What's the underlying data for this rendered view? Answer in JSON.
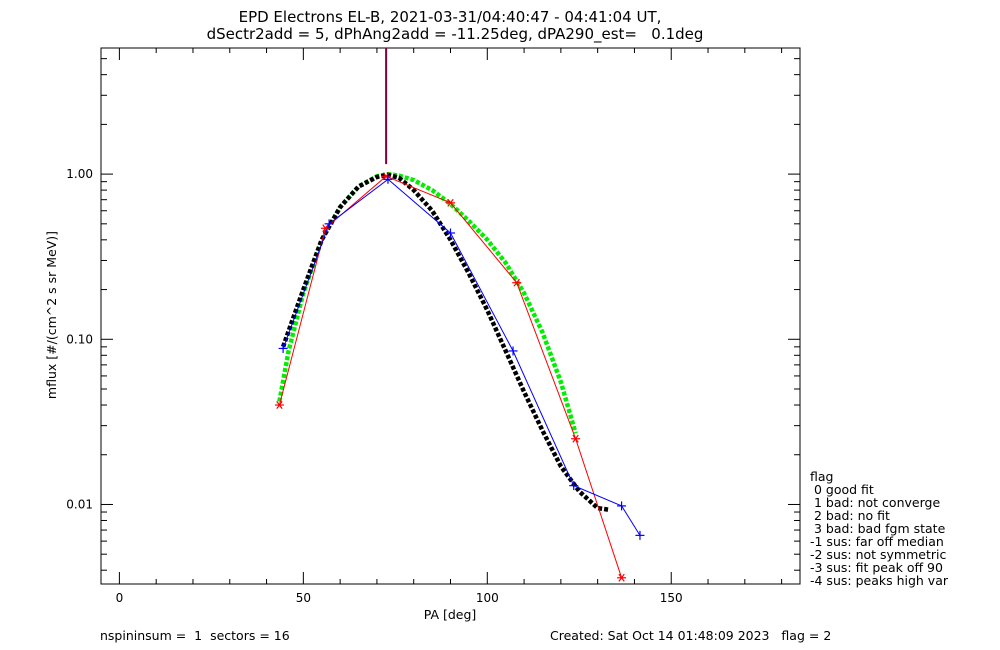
{
  "chart_data": {
    "type": "line",
    "title": "EPD Electrons EL-B, 2021-03-31/04:40:47 - 04:41:04 UT,",
    "subtitle": "dSectr2add = 5, dPhAng2add = -11.25deg, dPA290_est=   0.1deg",
    "xlabel": "PA [deg]",
    "ylabel": "mflux [#/(cm^2 s sr MeV)]",
    "xlim": [
      -5,
      185
    ],
    "ylim": [
      0.0033,
      5.8
    ],
    "yscale": "log",
    "x_ticks": [
      0,
      50,
      100,
      150
    ],
    "x_tick_labels": [
      "0",
      "50",
      "100",
      "150"
    ],
    "y_ticks": [
      0.01,
      0.1,
      1.0
    ],
    "y_tick_labels": [
      "0.01",
      "0.10",
      "1.00"
    ],
    "grid": false,
    "vertical_marker": {
      "x": 72.5,
      "y_from": 1.15,
      "color": "#800040"
    },
    "series": [
      {
        "color": "#ff0000",
        "marker": "asterisk",
        "x": [
          43.5,
          56.0,
          72.5,
          90.0,
          108.0,
          124.0,
          136.5
        ],
        "y": [
          0.04,
          0.47,
          0.97,
          0.67,
          0.22,
          0.025,
          0.0036
        ]
      },
      {
        "color": "#0000ff",
        "marker": "plus",
        "x": [
          44.5,
          57.0,
          73.0,
          90.0,
          107.0,
          123.5,
          136.5,
          141.5
        ],
        "y": [
          0.088,
          0.5,
          0.93,
          0.44,
          0.085,
          0.013,
          0.0098,
          0.0065
        ]
      },
      {
        "color": "#00ee00",
        "style": "dashed-fit",
        "x": [
          43.5,
          46,
          50,
          55,
          60,
          65,
          70,
          73,
          76,
          80,
          85,
          90,
          95,
          100,
          105,
          110,
          115,
          120,
          124
        ],
        "y": [
          0.042,
          0.085,
          0.19,
          0.4,
          0.63,
          0.84,
          0.97,
          1.0,
          0.98,
          0.92,
          0.8,
          0.66,
          0.52,
          0.4,
          0.29,
          0.19,
          0.11,
          0.055,
          0.027
        ]
      },
      {
        "color": "#000000",
        "style": "dashed-fit",
        "x": [
          44.5,
          47,
          50,
          55,
          60,
          65,
          70,
          73,
          76,
          80,
          85,
          90,
          95,
          100,
          105,
          110,
          115,
          120,
          125,
          130,
          133
        ],
        "y": [
          0.09,
          0.13,
          0.2,
          0.4,
          0.63,
          0.84,
          0.96,
          0.99,
          0.95,
          0.8,
          0.6,
          0.4,
          0.25,
          0.15,
          0.085,
          0.048,
          0.028,
          0.017,
          0.012,
          0.0095,
          0.0093
        ]
      }
    ]
  },
  "legend": {
    "title": "flag",
    "items": [
      " 0 good fit",
      " 1 bad: not converge",
      " 2 bad: no fit",
      " 3 bad: bad fgm state",
      "-1 sus: far off median",
      "-2 sus: not symmetric",
      "-3 sus: fit peak off 90",
      "-4 sus: peaks high var"
    ]
  },
  "footer": {
    "left": "nspininsum =  1  sectors = 16",
    "right": "Created: Sat Oct 14 01:48:09 2023   flag = 2"
  }
}
